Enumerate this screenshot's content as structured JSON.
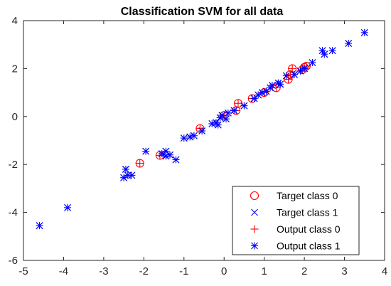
{
  "chart_data": {
    "type": "scatter",
    "title": "Classification SVM for all data",
    "xlabel": "",
    "ylabel": "",
    "xlim": [
      -5,
      4
    ],
    "ylim": [
      -6,
      4
    ],
    "xticks": [
      -5,
      -4,
      -3,
      -2,
      -1,
      0,
      1,
      2,
      3,
      4
    ],
    "yticks": [
      -6,
      -4,
      -2,
      0,
      2,
      4
    ],
    "grid": false,
    "legend_position": "bottom-right",
    "series": [
      {
        "name": "Target class 0",
        "marker": "circle",
        "color": "#FF0000",
        "points": [
          [
            -2.1,
            -1.95
          ],
          [
            -1.6,
            -1.62
          ],
          [
            -0.6,
            -0.5
          ],
          [
            0.0,
            0.05
          ],
          [
            0.3,
            0.25
          ],
          [
            0.35,
            0.55
          ],
          [
            0.7,
            0.75
          ],
          [
            1.0,
            1.0
          ],
          [
            1.3,
            1.2
          ],
          [
            1.6,
            1.55
          ],
          [
            1.65,
            1.75
          ],
          [
            1.7,
            2.0
          ],
          [
            1.95,
            1.95
          ],
          [
            2.0,
            2.05
          ],
          [
            2.05,
            2.1
          ]
        ]
      },
      {
        "name": "Target class 1",
        "marker": "x",
        "color": "#0000FF",
        "points": [
          [
            -4.6,
            -4.55
          ],
          [
            -3.9,
            -3.8
          ],
          [
            -2.5,
            -2.55
          ],
          [
            -2.4,
            -2.45
          ],
          [
            -2.3,
            -2.45
          ],
          [
            -2.45,
            -2.2
          ],
          [
            -1.95,
            -1.45
          ],
          [
            -1.55,
            -1.55
          ],
          [
            -1.45,
            -1.65
          ],
          [
            -1.45,
            -1.45
          ],
          [
            -1.35,
            -1.6
          ],
          [
            -1.2,
            -1.8
          ],
          [
            -1.0,
            -0.9
          ],
          [
            -0.85,
            -0.85
          ],
          [
            -0.75,
            -0.8
          ],
          [
            -0.55,
            -0.6
          ],
          [
            -0.3,
            -0.3
          ],
          [
            -0.2,
            -0.25
          ],
          [
            -0.15,
            -0.35
          ],
          [
            -0.1,
            -0.05
          ],
          [
            -0.05,
            0.05
          ],
          [
            0.05,
            -0.1
          ],
          [
            0.1,
            0.15
          ],
          [
            0.25,
            0.25
          ],
          [
            0.5,
            0.45
          ],
          [
            0.75,
            0.75
          ],
          [
            0.85,
            0.9
          ],
          [
            0.95,
            1.0
          ],
          [
            1.05,
            1.05
          ],
          [
            1.15,
            1.2
          ],
          [
            1.2,
            1.3
          ],
          [
            1.35,
            1.4
          ],
          [
            1.4,
            1.35
          ],
          [
            1.55,
            1.7
          ],
          [
            1.75,
            1.75
          ],
          [
            1.9,
            1.9
          ],
          [
            2.0,
            2.0
          ],
          [
            2.2,
            2.25
          ],
          [
            2.45,
            2.75
          ],
          [
            2.5,
            2.6
          ],
          [
            2.7,
            2.75
          ],
          [
            3.1,
            3.05
          ],
          [
            3.5,
            3.5
          ]
        ]
      },
      {
        "name": "Output class 0",
        "marker": "plus",
        "color": "#FF0000",
        "points": [
          [
            -2.1,
            -1.95
          ],
          [
            -1.6,
            -1.62
          ],
          [
            -0.6,
            -0.5
          ],
          [
            0.0,
            0.05
          ],
          [
            0.3,
            0.25
          ],
          [
            0.35,
            0.55
          ],
          [
            0.7,
            0.75
          ],
          [
            1.0,
            1.0
          ],
          [
            1.3,
            1.2
          ],
          [
            1.6,
            1.55
          ],
          [
            1.65,
            1.75
          ],
          [
            1.7,
            2.0
          ],
          [
            1.95,
            1.95
          ],
          [
            2.0,
            2.05
          ],
          [
            2.05,
            2.1
          ]
        ]
      },
      {
        "name": "Output class 1",
        "marker": "star",
        "color": "#0000FF",
        "points": [
          [
            -4.6,
            -4.55
          ],
          [
            -3.9,
            -3.8
          ],
          [
            -2.5,
            -2.55
          ],
          [
            -2.4,
            -2.45
          ],
          [
            -2.3,
            -2.45
          ],
          [
            -2.45,
            -2.2
          ],
          [
            -1.95,
            -1.45
          ],
          [
            -1.55,
            -1.55
          ],
          [
            -1.45,
            -1.65
          ],
          [
            -1.45,
            -1.45
          ],
          [
            -1.35,
            -1.6
          ],
          [
            -1.2,
            -1.8
          ],
          [
            -1.0,
            -0.9
          ],
          [
            -0.85,
            -0.85
          ],
          [
            -0.75,
            -0.8
          ],
          [
            -0.55,
            -0.6
          ],
          [
            -0.3,
            -0.3
          ],
          [
            -0.2,
            -0.25
          ],
          [
            -0.15,
            -0.35
          ],
          [
            -0.1,
            -0.05
          ],
          [
            -0.05,
            0.05
          ],
          [
            0.05,
            -0.1
          ],
          [
            0.1,
            0.15
          ],
          [
            0.25,
            0.25
          ],
          [
            0.5,
            0.45
          ],
          [
            0.75,
            0.75
          ],
          [
            0.85,
            0.9
          ],
          [
            0.95,
            1.0
          ],
          [
            1.05,
            1.05
          ],
          [
            1.15,
            1.2
          ],
          [
            1.2,
            1.3
          ],
          [
            1.35,
            1.4
          ],
          [
            1.4,
            1.35
          ],
          [
            1.55,
            1.7
          ],
          [
            1.75,
            1.75
          ],
          [
            1.9,
            1.9
          ],
          [
            2.0,
            2.0
          ],
          [
            2.2,
            2.25
          ],
          [
            2.45,
            2.75
          ],
          [
            2.5,
            2.6
          ],
          [
            2.7,
            2.75
          ],
          [
            3.1,
            3.05
          ],
          [
            3.5,
            3.5
          ]
        ]
      }
    ]
  }
}
